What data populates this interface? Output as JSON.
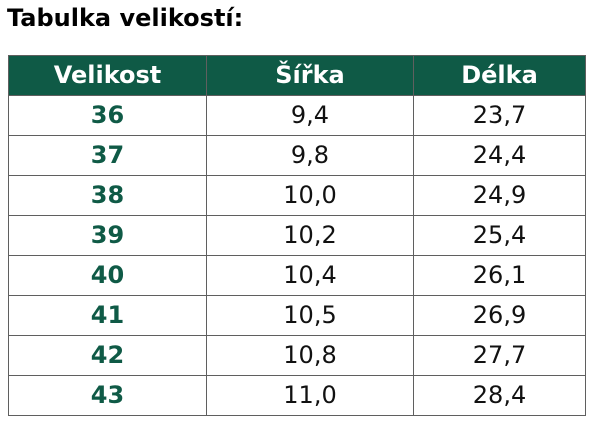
{
  "title": "Tabulka velikostí:",
  "colors": {
    "header_bg": "#0f5a46",
    "size_text": "#0f5a46",
    "border": "#5f5f5f"
  },
  "table": {
    "headers": [
      "Velikost",
      "Šířka",
      "Délka"
    ],
    "rows": [
      [
        "36",
        "9,4",
        "23,7"
      ],
      [
        "37",
        "9,8",
        "24,4"
      ],
      [
        "38",
        "10,0",
        "24,9"
      ],
      [
        "39",
        "10,2",
        "25,4"
      ],
      [
        "40",
        "10,4",
        "26,1"
      ],
      [
        "41",
        "10,5",
        "26,9"
      ],
      [
        "42",
        "10,8",
        "27,7"
      ],
      [
        "43",
        "11,0",
        "28,4"
      ]
    ]
  }
}
